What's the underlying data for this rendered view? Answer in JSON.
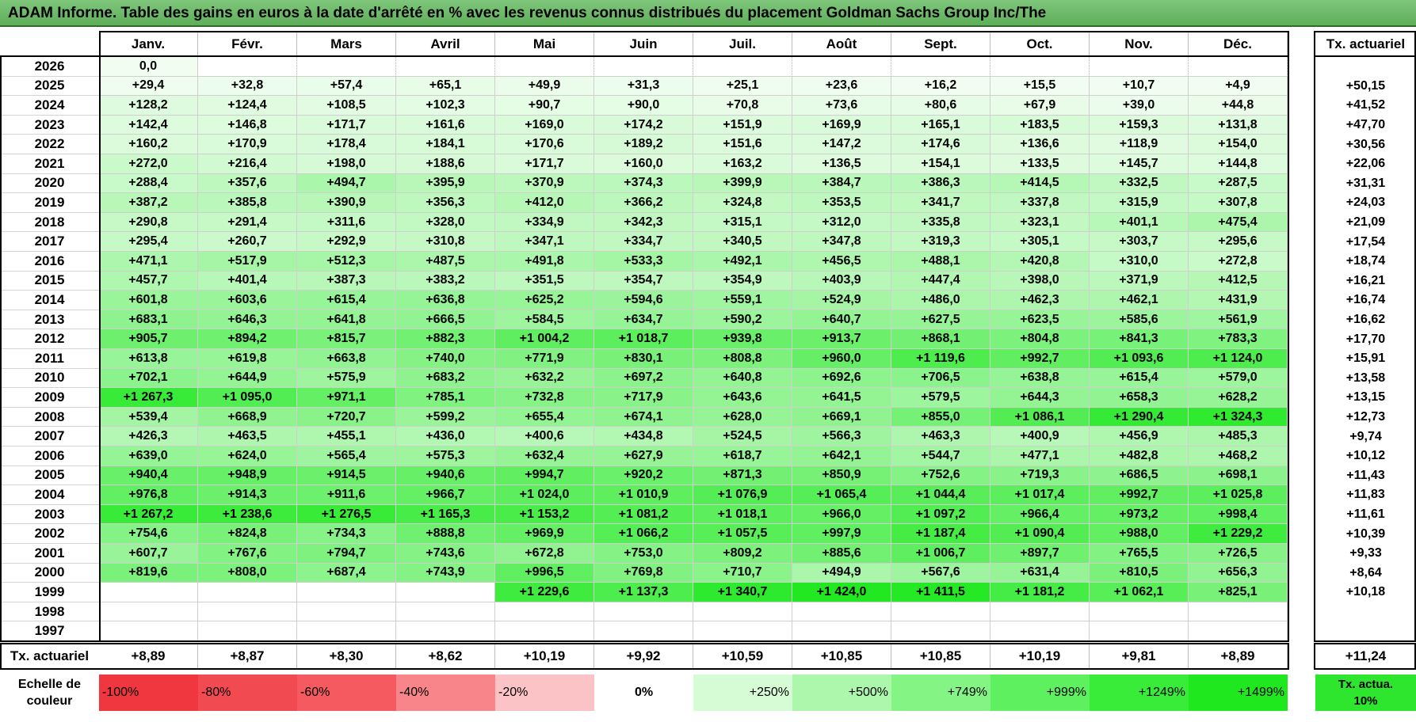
{
  "title": "ADAM Informe. Table des gains en euros à la date d'arrêté en % avec les revenus connus distribués du placement Goldman Sachs Group Inc/The",
  "months": [
    "Janv.",
    "Févr.",
    "Mars",
    "Avril",
    "Mai",
    "Juin",
    "Juil.",
    "Août",
    "Sept.",
    "Oct.",
    "Nov.",
    "Déc."
  ],
  "annual_header": "Tx. actuariel",
  "rows": [
    {
      "year": "2026",
      "values": [
        "0,0",
        "",
        "",
        "",
        "",
        "",
        "",
        "",
        "",
        "",
        "",
        ""
      ],
      "rate": ""
    },
    {
      "year": "2025",
      "values": [
        "+29,4",
        "+32,8",
        "+57,4",
        "+65,1",
        "+49,9",
        "+31,3",
        "+25,1",
        "+23,6",
        "+16,2",
        "+15,5",
        "+10,7",
        "+4,9"
      ],
      "rate": "+50,15"
    },
    {
      "year": "2024",
      "values": [
        "+128,2",
        "+124,4",
        "+108,5",
        "+102,3",
        "+90,7",
        "+90,0",
        "+70,8",
        "+73,6",
        "+80,6",
        "+67,9",
        "+39,0",
        "+44,8"
      ],
      "rate": "+41,52"
    },
    {
      "year": "2023",
      "values": [
        "+142,4",
        "+146,8",
        "+171,7",
        "+161,6",
        "+169,0",
        "+174,2",
        "+151,9",
        "+169,9",
        "+165,1",
        "+183,5",
        "+159,3",
        "+131,8"
      ],
      "rate": "+47,70"
    },
    {
      "year": "2022",
      "values": [
        "+160,2",
        "+170,9",
        "+178,4",
        "+184,1",
        "+170,6",
        "+189,2",
        "+151,6",
        "+147,2",
        "+174,6",
        "+136,6",
        "+118,9",
        "+154,0"
      ],
      "rate": "+30,56"
    },
    {
      "year": "2021",
      "values": [
        "+272,0",
        "+216,4",
        "+198,0",
        "+188,6",
        "+171,7",
        "+160,0",
        "+163,2",
        "+136,5",
        "+154,1",
        "+133,5",
        "+145,7",
        "+144,8"
      ],
      "rate": "+22,06"
    },
    {
      "year": "2020",
      "values": [
        "+288,4",
        "+357,6",
        "+494,7",
        "+395,9",
        "+370,9",
        "+374,3",
        "+399,9",
        "+384,7",
        "+386,3",
        "+414,5",
        "+332,5",
        "+287,5"
      ],
      "rate": "+31,31"
    },
    {
      "year": "2019",
      "values": [
        "+387,2",
        "+385,8",
        "+390,9",
        "+356,3",
        "+412,0",
        "+366,2",
        "+324,8",
        "+353,5",
        "+341,7",
        "+337,8",
        "+315,9",
        "+307,8"
      ],
      "rate": "+24,03"
    },
    {
      "year": "2018",
      "values": [
        "+290,8",
        "+291,4",
        "+311,6",
        "+328,0",
        "+334,9",
        "+342,3",
        "+315,1",
        "+312,0",
        "+335,8",
        "+323,1",
        "+401,1",
        "+475,4"
      ],
      "rate": "+21,09"
    },
    {
      "year": "2017",
      "values": [
        "+295,4",
        "+260,7",
        "+292,9",
        "+310,8",
        "+347,1",
        "+334,7",
        "+340,5",
        "+347,8",
        "+319,3",
        "+305,1",
        "+303,7",
        "+295,6"
      ],
      "rate": "+17,54"
    },
    {
      "year": "2016",
      "values": [
        "+471,1",
        "+517,9",
        "+512,3",
        "+487,5",
        "+491,8",
        "+533,3",
        "+492,1",
        "+456,5",
        "+488,1",
        "+420,8",
        "+310,0",
        "+272,8"
      ],
      "rate": "+18,74"
    },
    {
      "year": "2015",
      "values": [
        "+457,7",
        "+401,4",
        "+387,3",
        "+383,2",
        "+351,5",
        "+354,7",
        "+354,9",
        "+403,9",
        "+447,4",
        "+398,0",
        "+371,9",
        "+412,5"
      ],
      "rate": "+16,21"
    },
    {
      "year": "2014",
      "values": [
        "+601,8",
        "+603,6",
        "+615,4",
        "+636,8",
        "+625,2",
        "+594,6",
        "+559,1",
        "+524,9",
        "+486,0",
        "+462,3",
        "+462,1",
        "+431,9"
      ],
      "rate": "+16,74"
    },
    {
      "year": "2013",
      "values": [
        "+683,1",
        "+646,3",
        "+641,8",
        "+666,5",
        "+584,5",
        "+634,7",
        "+590,2",
        "+640,7",
        "+627,5",
        "+623,5",
        "+585,6",
        "+561,9"
      ],
      "rate": "+16,62"
    },
    {
      "year": "2012",
      "values": [
        "+905,7",
        "+894,2",
        "+815,7",
        "+882,3",
        "+1 004,2",
        "+1 018,7",
        "+939,8",
        "+913,7",
        "+868,1",
        "+804,8",
        "+841,3",
        "+783,3"
      ],
      "rate": "+17,70"
    },
    {
      "year": "2011",
      "values": [
        "+613,8",
        "+619,8",
        "+663,8",
        "+740,0",
        "+771,9",
        "+830,1",
        "+808,8",
        "+960,0",
        "+1 119,6",
        "+992,7",
        "+1 093,6",
        "+1 124,0"
      ],
      "rate": "+15,91"
    },
    {
      "year": "2010",
      "values": [
        "+702,1",
        "+644,9",
        "+575,9",
        "+683,2",
        "+632,2",
        "+697,2",
        "+640,8",
        "+692,6",
        "+706,5",
        "+638,8",
        "+615,4",
        "+579,0"
      ],
      "rate": "+13,58"
    },
    {
      "year": "2009",
      "values": [
        "+1 267,3",
        "+1 095,0",
        "+971,1",
        "+785,1",
        "+732,8",
        "+717,9",
        "+643,6",
        "+641,5",
        "+579,5",
        "+644,3",
        "+658,3",
        "+628,2"
      ],
      "rate": "+13,15"
    },
    {
      "year": "2008",
      "values": [
        "+539,4",
        "+668,9",
        "+720,7",
        "+599,2",
        "+655,4",
        "+674,1",
        "+628,0",
        "+669,1",
        "+855,0",
        "+1 086,1",
        "+1 290,4",
        "+1 324,3"
      ],
      "rate": "+12,73"
    },
    {
      "year": "2007",
      "values": [
        "+426,3",
        "+463,5",
        "+455,1",
        "+436,0",
        "+400,6",
        "+434,8",
        "+524,5",
        "+566,3",
        "+463,3",
        "+400,9",
        "+456,9",
        "+485,3"
      ],
      "rate": "+9,74"
    },
    {
      "year": "2006",
      "values": [
        "+639,0",
        "+624,0",
        "+565,4",
        "+575,3",
        "+632,4",
        "+627,9",
        "+618,7",
        "+642,1",
        "+544,7",
        "+477,1",
        "+482,8",
        "+468,2"
      ],
      "rate": "+10,12"
    },
    {
      "year": "2005",
      "values": [
        "+940,4",
        "+948,9",
        "+914,5",
        "+940,6",
        "+994,7",
        "+920,2",
        "+871,3",
        "+850,9",
        "+752,6",
        "+719,3",
        "+686,5",
        "+698,1"
      ],
      "rate": "+11,43"
    },
    {
      "year": "2004",
      "values": [
        "+976,8",
        "+914,3",
        "+911,6",
        "+966,7",
        "+1 024,0",
        "+1 010,9",
        "+1 076,9",
        "+1 065,4",
        "+1 044,4",
        "+1 017,4",
        "+992,7",
        "+1 025,8"
      ],
      "rate": "+11,83"
    },
    {
      "year": "2003",
      "values": [
        "+1 267,2",
        "+1 238,6",
        "+1 276,5",
        "+1 165,3",
        "+1 153,2",
        "+1 081,2",
        "+1 018,1",
        "+966,0",
        "+1 097,2",
        "+966,4",
        "+973,2",
        "+998,4"
      ],
      "rate": "+11,61"
    },
    {
      "year": "2002",
      "values": [
        "+754,6",
        "+824,8",
        "+734,3",
        "+888,8",
        "+969,9",
        "+1 066,2",
        "+1 057,5",
        "+997,9",
        "+1 187,4",
        "+1 090,4",
        "+988,0",
        "+1 229,2"
      ],
      "rate": "+10,39"
    },
    {
      "year": "2001",
      "values": [
        "+607,7",
        "+767,6",
        "+794,7",
        "+743,6",
        "+672,8",
        "+753,0",
        "+809,2",
        "+885,6",
        "+1 006,7",
        "+897,7",
        "+765,5",
        "+726,5"
      ],
      "rate": "+9,33"
    },
    {
      "year": "2000",
      "values": [
        "+819,6",
        "+808,0",
        "+687,4",
        "+743,9",
        "+996,5",
        "+769,8",
        "+710,7",
        "+494,9",
        "+567,6",
        "+631,4",
        "+810,5",
        "+656,3"
      ],
      "rate": "+8,64"
    },
    {
      "year": "1999",
      "values": [
        "",
        "",
        "",
        "",
        "+1 229,6",
        "+1 137,3",
        "+1 340,7",
        "+1 424,0",
        "+1 411,5",
        "+1 181,2",
        "+1 062,1",
        "+825,1"
      ],
      "rate": "+10,18"
    },
    {
      "year": "1998",
      "values": [
        "",
        "",
        "",
        "",
        "",
        "",
        "",
        "",
        "",
        "",
        "",
        ""
      ],
      "rate": ""
    },
    {
      "year": "1997",
      "values": [
        "",
        "",
        "",
        "",
        "",
        "",
        "",
        "",
        "",
        "",
        "",
        ""
      ],
      "rate": ""
    }
  ],
  "footer": {
    "label": "Tx. actuariel",
    "values": [
      "+8,89",
      "+8,87",
      "+8,30",
      "+8,62",
      "+10,19",
      "+9,92",
      "+10,59",
      "+10,85",
      "+10,85",
      "+10,19",
      "+9,81",
      "+8,89"
    ],
    "total": "+11,24"
  },
  "legend": {
    "label": "Echelle de couleur",
    "items": [
      {
        "text": "-100%",
        "color": "#f0373f",
        "align": "left"
      },
      {
        "text": "-80%",
        "color": "#f24a51",
        "align": "left"
      },
      {
        "text": "-60%",
        "color": "#f45a60",
        "align": "left"
      },
      {
        "text": "-40%",
        "color": "#f78589",
        "align": "left"
      },
      {
        "text": "-20%",
        "color": "#fbc3c5",
        "align": "left"
      },
      {
        "text": "0%",
        "color": "#ffffff",
        "align": "center"
      },
      {
        "text": "+250%",
        "color": "#d6fcd6",
        "align": "right"
      },
      {
        "text": "+500%",
        "color": "#adf7ad",
        "align": "right"
      },
      {
        "text": "+749%",
        "color": "#84f584",
        "align": "right"
      },
      {
        "text": "+999%",
        "color": "#5ef05e",
        "align": "right"
      },
      {
        "text": "+1249%",
        "color": "#39ec39",
        "align": "right"
      },
      {
        "text": "+1499%",
        "color": "#1fe81f",
        "align": "right"
      }
    ],
    "rate_label": "Tx. actua. 10%",
    "rate_color": "#2de62d"
  }
}
